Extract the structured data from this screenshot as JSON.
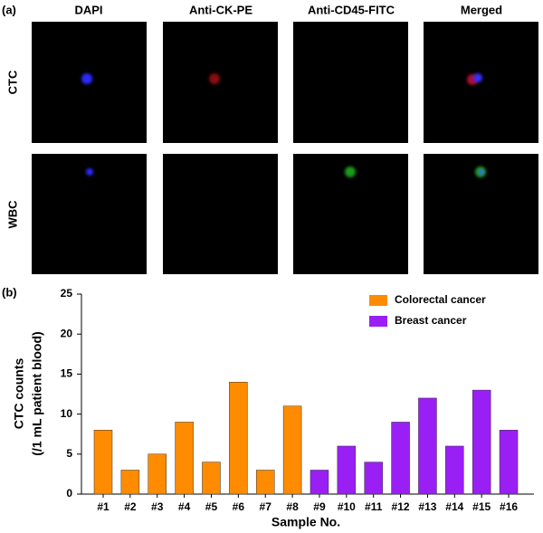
{
  "panel_a": {
    "label": "(a)",
    "columns": [
      "DAPI",
      "Anti-CK-PE",
      "Anti-CD45-FITC",
      "Merged"
    ],
    "rows": [
      "CTC",
      "WBC"
    ]
  },
  "chart_data": {
    "type": "bar",
    "panel_label": "(b)",
    "categories": [
      "#1",
      "#2",
      "#3",
      "#4",
      "#5",
      "#6",
      "#7",
      "#8",
      "#9",
      "#10",
      "#11",
      "#12",
      "#13",
      "#14",
      "#15",
      "#16"
    ],
    "series": [
      {
        "name": "Colorectal cancer",
        "color": "#ff8c00",
        "values": [
          8,
          3,
          5,
          9,
          4,
          14,
          3,
          11,
          null,
          null,
          null,
          null,
          null,
          null,
          null,
          null
        ]
      },
      {
        "name": "Breast cancer",
        "color": "#9a1ff5",
        "values": [
          null,
          null,
          null,
          null,
          null,
          null,
          null,
          null,
          3,
          6,
          4,
          9,
          12,
          6,
          13,
          8
        ]
      }
    ],
    "xlabel": "Sample No.",
    "ylabel": [
      "CTC counts",
      "(/1 mL patient blood)"
    ],
    "ylim": [
      0,
      25
    ],
    "yticks": [
      0,
      5,
      10,
      15,
      20,
      25
    ],
    "legend": "upper right"
  }
}
